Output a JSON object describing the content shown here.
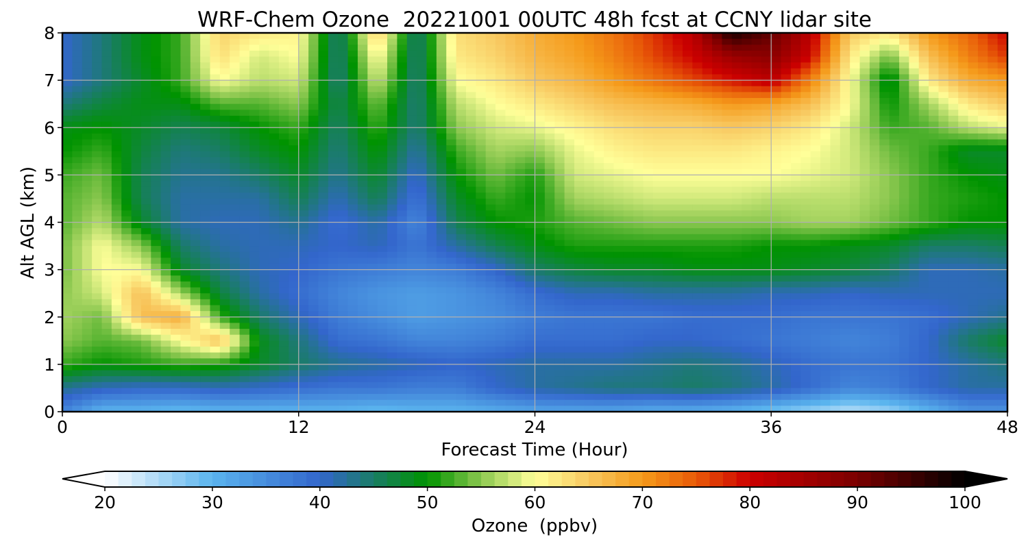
{
  "chart_data": {
    "type": "heatmap",
    "title": "WRF-Chem Ozone  20221001 00UTC 48h fcst at CCNY lidar site",
    "xlabel": "Forecast Time (Hour)",
    "ylabel": "Alt AGL (km)",
    "xlim": [
      0,
      48
    ],
    "ylim": [
      0,
      8
    ],
    "x_ticks": [
      "0",
      "12",
      "24",
      "36",
      "48"
    ],
    "y_ticks": [
      "0",
      "1",
      "2",
      "3",
      "4",
      "5",
      "6",
      "7",
      "8"
    ],
    "grid": true,
    "colorbar": {
      "label": "Ozone  (ppbv)",
      "range": [
        20,
        100
      ],
      "ticks": [
        "20",
        "30",
        "40",
        "50",
        "60",
        "70",
        "80",
        "90",
        "100"
      ],
      "extend": "both",
      "stops": [
        {
          "v": 20,
          "c": "#ffffff"
        },
        {
          "v": 30,
          "c": "#5ab4ee"
        },
        {
          "v": 40,
          "c": "#3366cc"
        },
        {
          "v": 50,
          "c": "#009300"
        },
        {
          "v": 55,
          "c": "#8cc850"
        },
        {
          "v": 60,
          "c": "#ffff99"
        },
        {
          "v": 65,
          "c": "#f8c860"
        },
        {
          "v": 70,
          "c": "#f59a1a"
        },
        {
          "v": 75,
          "c": "#e85a08"
        },
        {
          "v": 80,
          "c": "#cc0000"
        },
        {
          "v": 90,
          "c": "#7a0000"
        },
        {
          "v": 100,
          "c": "#000000"
        }
      ]
    },
    "x": [
      0,
      2,
      4,
      6,
      8,
      10,
      12,
      14,
      16,
      18,
      20,
      22,
      24,
      26,
      28,
      30,
      32,
      34,
      36,
      38,
      40,
      42,
      44,
      46,
      48
    ],
    "y": [
      0,
      0.5,
      1,
      1.5,
      2,
      2.5,
      3,
      3.5,
      4,
      4.5,
      5,
      5.5,
      6,
      6.5,
      7,
      7.5,
      8
    ],
    "z": [
      [
        36,
        30,
        30,
        29,
        30,
        30,
        30,
        30,
        29,
        30,
        30,
        31,
        32,
        32,
        32,
        31,
        31,
        30,
        28,
        26,
        24,
        26,
        30,
        34,
        34
      ],
      [
        43,
        41,
        40,
        40,
        41,
        40,
        39,
        38,
        38,
        37,
        37,
        40,
        42,
        43,
        44,
        44,
        45,
        44,
        42,
        39,
        36,
        37,
        40,
        42,
        42
      ],
      [
        52,
        50,
        51,
        52,
        51,
        48,
        45,
        43,
        42,
        41,
        40,
        41,
        42,
        42,
        42,
        43,
        44,
        43,
        41,
        39,
        38,
        38,
        40,
        42,
        44
      ],
      [
        55,
        53,
        54,
        60,
        66,
        49,
        44,
        39,
        38,
        36,
        36,
        37,
        39,
        39,
        39,
        40,
        40,
        39,
        38,
        37,
        36,
        37,
        40,
        45,
        48
      ],
      [
        56,
        54,
        66,
        68,
        52,
        45,
        41,
        37,
        35,
        33,
        34,
        35,
        37,
        38,
        38,
        38,
        39,
        39,
        39,
        38,
        38,
        38,
        39,
        41,
        43
      ],
      [
        55,
        58,
        66,
        56,
        47,
        42,
        39,
        36,
        34,
        33,
        34,
        36,
        39,
        41,
        41,
        42,
        42,
        42,
        41,
        41,
        40,
        41,
        41,
        41,
        41
      ],
      [
        54,
        60,
        60,
        48,
        44,
        41,
        40,
        38,
        37,
        36,
        37,
        40,
        45,
        47,
        48,
        48,
        49,
        49,
        49,
        48,
        47,
        45,
        41,
        41,
        42
      ],
      [
        54,
        60,
        55,
        45,
        42,
        41,
        41,
        40,
        41,
        38,
        42,
        46,
        49,
        51,
        51,
        51,
        51,
        51,
        50,
        50,
        49,
        48,
        45,
        45,
        46
      ],
      [
        53,
        57,
        48,
        42,
        41,
        41,
        43,
        39,
        42,
        36,
        46,
        50,
        51,
        53,
        54,
        55,
        55,
        55,
        55,
        56,
        56,
        54,
        52,
        50,
        50
      ],
      [
        53,
        55,
        46,
        42,
        42,
        42,
        46,
        41,
        46,
        38,
        48,
        52,
        50,
        56,
        57,
        58,
        58,
        58,
        57,
        57,
        57,
        55,
        52,
        51,
        50
      ],
      [
        52,
        54,
        46,
        43,
        43,
        45,
        48,
        43,
        48,
        40,
        50,
        54,
        51,
        58,
        59,
        60,
        60,
        60,
        60,
        59,
        58,
        55,
        52,
        50,
        49
      ],
      [
        50,
        52,
        47,
        44,
        45,
        48,
        50,
        44,
        50,
        42,
        52,
        56,
        55,
        59,
        61,
        62,
        62,
        62,
        61,
        60,
        58,
        54,
        52,
        48,
        48
      ],
      [
        49,
        50,
        48,
        46,
        47,
        50,
        52,
        45,
        52,
        44,
        55,
        58,
        59,
        61,
        63,
        64,
        64,
        65,
        64,
        62,
        58,
        52,
        53,
        57,
        59
      ],
      [
        44,
        47,
        49,
        49,
        53,
        53,
        55,
        46,
        54,
        44,
        57,
        60,
        62,
        64,
        66,
        67,
        68,
        70,
        69,
        66,
        60,
        50,
        56,
        62,
        65
      ],
      [
        40,
        44,
        48,
        52,
        60,
        57,
        58,
        44,
        58,
        44,
        60,
        62,
        65,
        67,
        70,
        73,
        76,
        79,
        82,
        72,
        60,
        48,
        62,
        68,
        70
      ],
      [
        40,
        44,
        49,
        52,
        63,
        58,
        60,
        44,
        61,
        44,
        62,
        64,
        67,
        69,
        72,
        76,
        80,
        86,
        88,
        80,
        62,
        54,
        66,
        72,
        77
      ],
      [
        40,
        44,
        49,
        52,
        64,
        62,
        61,
        44,
        65,
        44,
        63,
        65,
        68,
        70,
        73,
        77,
        82,
        98,
        92,
        82,
        65,
        62,
        70,
        74,
        80
      ]
    ]
  }
}
